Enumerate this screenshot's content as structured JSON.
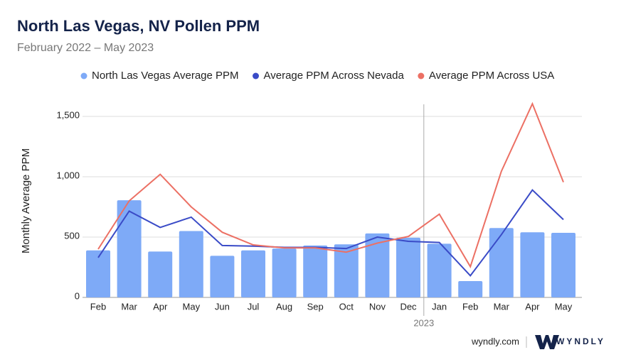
{
  "chart_data": {
    "type": "bar_line",
    "title": "North Las Vegas, NV Pollen PPM",
    "subtitle": "February 2022 – May 2023",
    "y_axis_label": "Monthly Average PPM",
    "categories": [
      "Feb",
      "Mar",
      "Apr",
      "May",
      "Jun",
      "Jul",
      "Aug",
      "Sep",
      "Oct",
      "Nov",
      "Dec",
      "Jan",
      "Feb",
      "Mar",
      "Apr",
      "May"
    ],
    "year_annotation": "2023",
    "series": [
      {
        "name": "North Las Vegas Average PPM",
        "type": "bar",
        "color": "#7eaaf7",
        "values": [
          390,
          805,
          380,
          550,
          345,
          390,
          405,
          430,
          440,
          530,
          495,
          445,
          135,
          575,
          540,
          535
        ]
      },
      {
        "name": "Average PPM Across Nevada",
        "type": "line",
        "color": "#3a4bc7",
        "values": [
          330,
          715,
          580,
          665,
          430,
          425,
          415,
          415,
          405,
          500,
          465,
          455,
          180,
          520,
          890,
          645
        ]
      },
      {
        "name": "Average PPM Across USA",
        "type": "line",
        "color": "#ec7064",
        "values": [
          400,
          800,
          1020,
          750,
          540,
          435,
          410,
          410,
          375,
          450,
          505,
          690,
          255,
          1045,
          1605,
          955
        ]
      }
    ],
    "ylim": [
      0,
      1600
    ],
    "yticks": [
      0,
      500,
      {
        "value": 1000,
        "label": "1,000"
      },
      {
        "value": 1500,
        "label": "1,500"
      }
    ],
    "grid": true,
    "legend": "top",
    "source": "wyndly.com",
    "brand": "WYNDLY"
  }
}
